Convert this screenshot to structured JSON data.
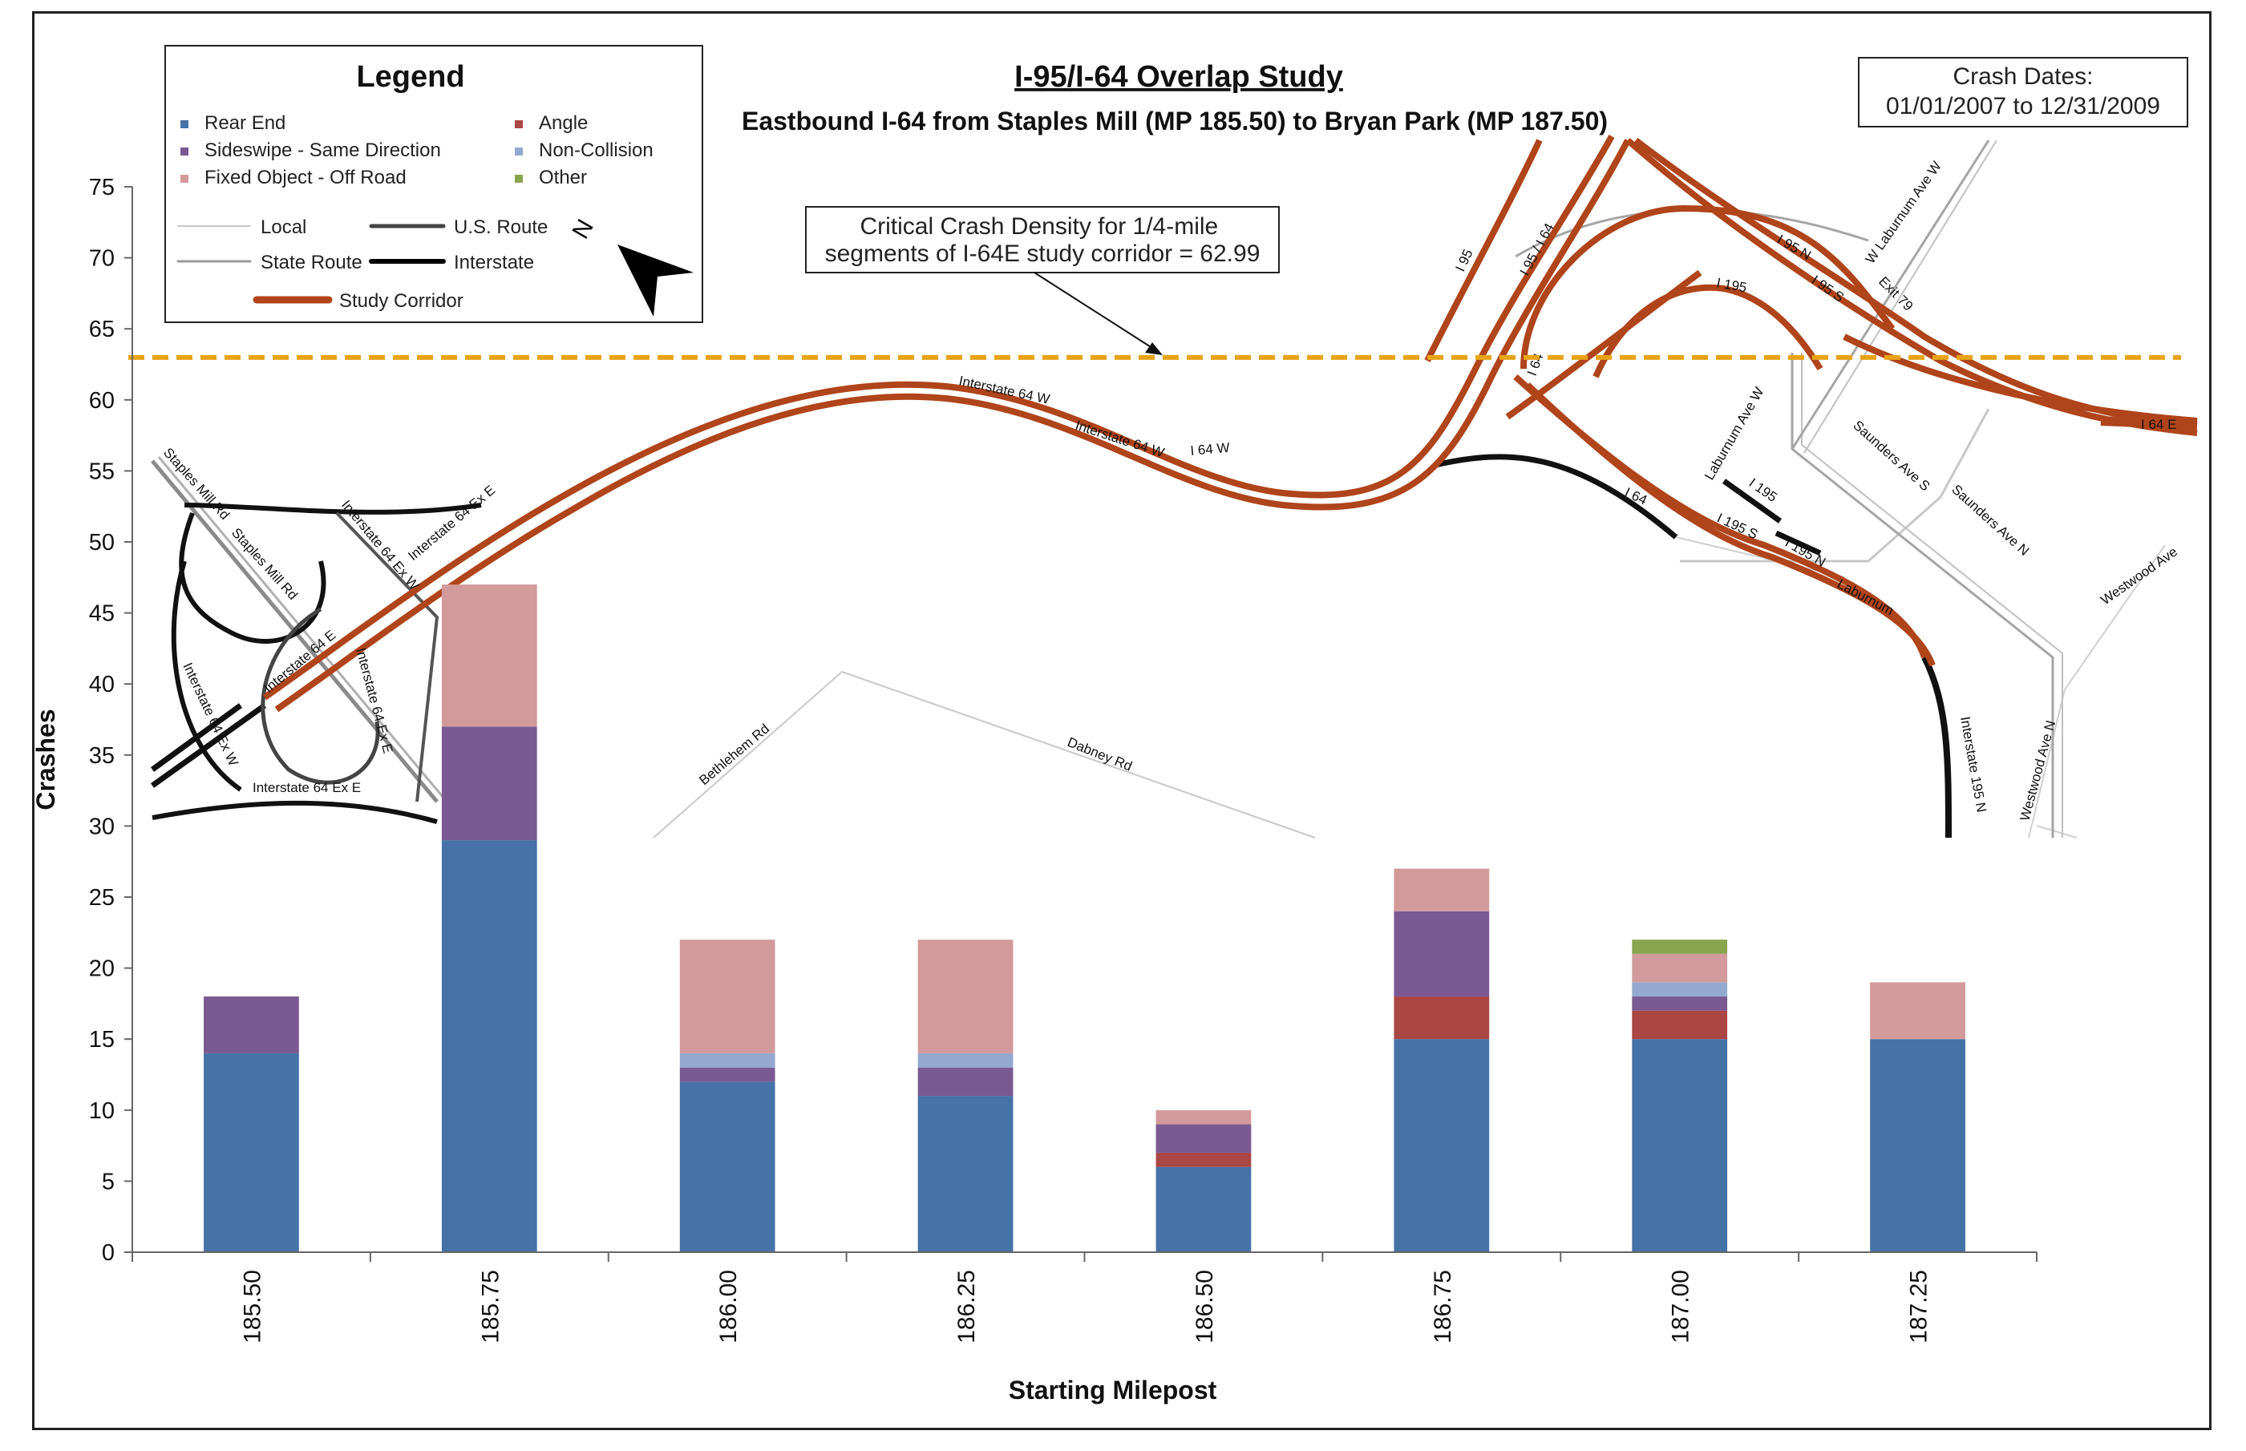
{
  "chart_data": {
    "type": "bar",
    "stacked": true,
    "title": "I-95/I-64 Overlap Study",
    "subtitle": "Eastbound I-64 from Staples Mill (MP 185.50) to Bryan Park (MP 187.50)",
    "xlabel": "Starting Milepost",
    "ylabel": "Crashes",
    "ylim": [
      0,
      75
    ],
    "yticks": [
      0,
      5,
      10,
      15,
      20,
      25,
      30,
      35,
      40,
      45,
      50,
      55,
      60,
      65,
      70,
      75
    ],
    "grid": false,
    "legend_position": "top-left",
    "categories": [
      "185.50",
      "185.75",
      "186.00",
      "186.25",
      "186.50",
      "186.75",
      "187.00",
      "187.25"
    ],
    "series": [
      {
        "name": "Rear End",
        "color": "#4572a7",
        "values": [
          14,
          29,
          12,
          11,
          6,
          15,
          15,
          15
        ]
      },
      {
        "name": "Angle",
        "color": "#aa4643",
        "values": [
          0,
          0,
          0,
          0,
          1,
          3,
          2,
          0
        ]
      },
      {
        "name": "Sideswipe - Same Direction",
        "color": "#7b5a93",
        "values": [
          4,
          8,
          1,
          2,
          2,
          6,
          1,
          0
        ]
      },
      {
        "name": "Non-Collision",
        "color": "#93a9cf",
        "values": [
          0,
          0,
          1,
          1,
          0,
          0,
          1,
          0
        ]
      },
      {
        "name": "Fixed Object - Off Road",
        "color": "#d39a9b",
        "values": [
          0,
          10,
          8,
          8,
          1,
          3,
          2,
          4
        ]
      },
      {
        "name": "Other",
        "color": "#89a54e",
        "values": [
          0,
          0,
          0,
          0,
          0,
          0,
          1,
          0
        ]
      }
    ],
    "reference_line": {
      "value": 62.99,
      "color": "#e8a317",
      "label": "Critical Crash Density for 1/4-mile segments of I-64E study corridor = 62.99"
    },
    "crash_dates": {
      "label": "Crash Dates:",
      "range": "01/01/2007 to 12/31/2009"
    }
  },
  "legend": {
    "title": "Legend",
    "crash_types": [
      {
        "name": "Rear End",
        "color": "#4572a7"
      },
      {
        "name": "Angle",
        "color": "#aa4643"
      },
      {
        "name": "Sideswipe - Same Direction",
        "color": "#7b5a93"
      },
      {
        "name": "Non-Collision",
        "color": "#93a9cf"
      },
      {
        "name": "Fixed Object - Off Road",
        "color": "#d39a9b"
      },
      {
        "name": "Other",
        "color": "#89a54e"
      }
    ],
    "road_types": [
      {
        "name": "Local",
        "color": "#c8c8c8",
        "width": 2
      },
      {
        "name": "U.S. Route",
        "color": "#444444",
        "width": 5
      },
      {
        "name": "State Route",
        "color": "#9a9a9a",
        "width": 3
      },
      {
        "name": "Interstate",
        "color": "#000000",
        "width": 6
      },
      {
        "name": "Study Corridor",
        "color": "#b0441a",
        "width": 9
      }
    ],
    "north_label": "N",
    "north_icon": "north-arrow-icon"
  },
  "map_labels": {
    "staples_mill_1": "Staples Mill Rd",
    "staples_mill_2": "Staples Mill Rd",
    "i64_ex_w_1": "Interstate 64 Ex W",
    "i64_ex_w_2": "Interstate 64 Ex W",
    "i64_ex_e_1": "Interstate 64 Ex E",
    "i64_ex_e_2": "Interstate 64 Ex E",
    "i64_ex_e_3": "Interstate 64 Ex E",
    "i64_e": "Interstate 64 E",
    "bethlehem": "Bethlehem Rd",
    "dabney": "Dabney Rd",
    "i64_w_1": "Interstate 64 W",
    "i64_w_2": "Interstate 64 W",
    "i64_w_3": "I 64 W",
    "i95": "I 95",
    "i95_i64": "I 95 / I 64",
    "i64_a": "I 64",
    "i64_b": "I 64",
    "i95_n": "I 95 N",
    "i95_s": "I 95 S",
    "i195_a": "I 195",
    "i195_b": "I 195",
    "i195_s": "I 195 S",
    "i195_n": "I 195 N",
    "exit_79": "Exit 79",
    "w_laburnum": "W Laburnum Ave W",
    "laburnum_w": "Laburnum Ave W",
    "laburnum": "Laburnum",
    "saunders_s": "Saunders Ave S",
    "saunders_n": "Saunders Ave N",
    "westwood_n": "Westwood Ave N",
    "westwood": "Westwood Ave",
    "i64_e_right": "I 64 E",
    "i195_n_bottom": "Interstate 195 N"
  }
}
